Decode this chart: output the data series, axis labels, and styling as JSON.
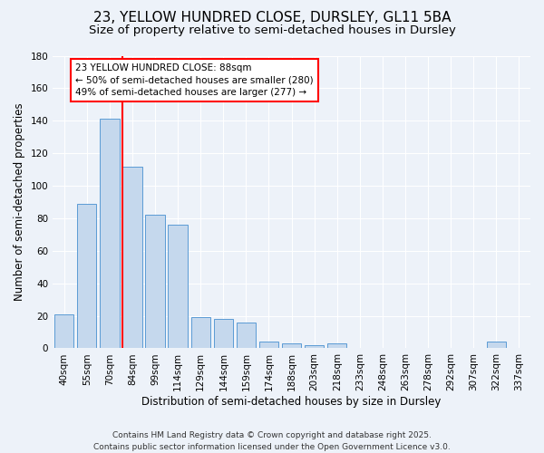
{
  "title": "23, YELLOW HUNDRED CLOSE, DURSLEY, GL11 5BA",
  "subtitle": "Size of property relative to semi-detached houses in Dursley",
  "xlabel": "Distribution of semi-detached houses by size in Dursley",
  "ylabel": "Number of semi-detached properties",
  "categories": [
    "40sqm",
    "55sqm",
    "70sqm",
    "84sqm",
    "99sqm",
    "114sqm",
    "129sqm",
    "144sqm",
    "159sqm",
    "174sqm",
    "188sqm",
    "203sqm",
    "218sqm",
    "233sqm",
    "248sqm",
    "263sqm",
    "278sqm",
    "292sqm",
    "307sqm",
    "322sqm",
    "337sqm"
  ],
  "values": [
    21,
    89,
    141,
    112,
    82,
    76,
    19,
    18,
    16,
    4,
    3,
    2,
    3,
    0,
    0,
    0,
    0,
    0,
    0,
    4,
    0
  ],
  "bar_color": "#c5d8ed",
  "bar_edge_color": "#5b9bd5",
  "red_line_bar_index": 3,
  "annotation_line1": "23 YELLOW HUNDRED CLOSE: 88sqm",
  "annotation_line2": "← 50% of semi-detached houses are smaller (280)",
  "annotation_line3": "49% of semi-detached houses are larger (277) →",
  "ylim": [
    0,
    180
  ],
  "yticks": [
    0,
    20,
    40,
    60,
    80,
    100,
    120,
    140,
    160,
    180
  ],
  "footer_line1": "Contains HM Land Registry data © Crown copyright and database right 2025.",
  "footer_line2": "Contains public sector information licensed under the Open Government Licence v3.0.",
  "background_color": "#edf2f9",
  "grid_color": "#ffffff",
  "title_fontsize": 11,
  "subtitle_fontsize": 9.5,
  "axis_label_fontsize": 8.5,
  "tick_fontsize": 7.5,
  "annotation_fontsize": 7.5,
  "footer_fontsize": 6.5
}
